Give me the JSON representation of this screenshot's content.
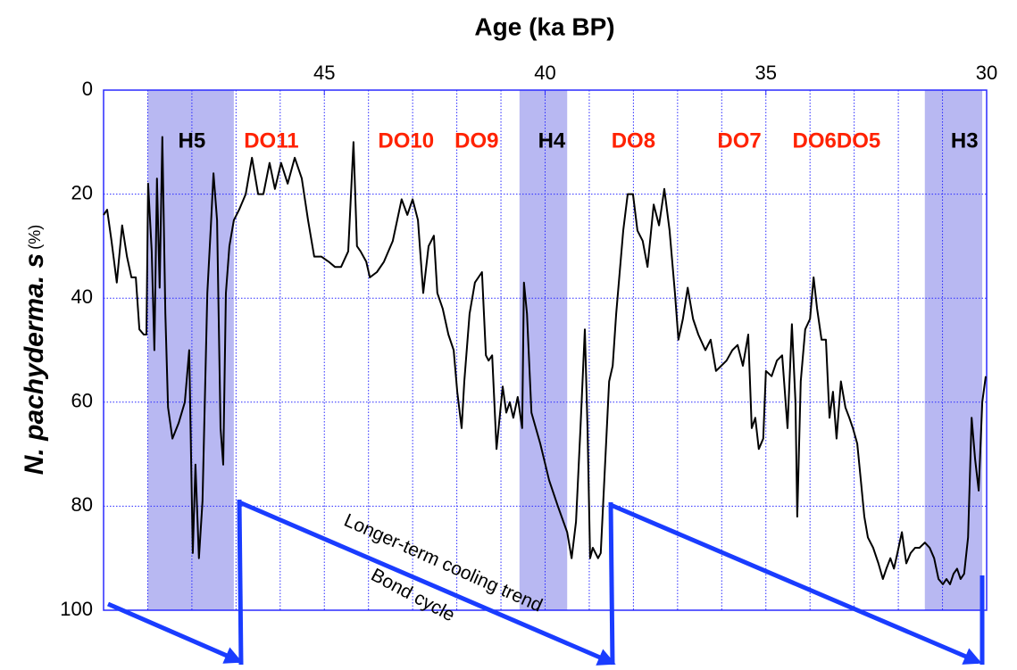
{
  "chart_data": {
    "type": "line",
    "title": "Age (ka BP)",
    "ylabel": "N. pachyderma. s",
    "ylabel_unit": "(%)",
    "xlim": [
      50,
      30
    ],
    "ylim": [
      100,
      0
    ],
    "xticks": [
      45,
      40,
      35,
      30
    ],
    "yticks": [
      0,
      20,
      40,
      60,
      80,
      100
    ],
    "xgrid": [
      49,
      48,
      47,
      46,
      45,
      44,
      43,
      42,
      41,
      40,
      39,
      38,
      37,
      36,
      35,
      34,
      33,
      32,
      31
    ],
    "grid": true,
    "color": "#000000",
    "band_color": "#b8b8f2",
    "bands": [
      [
        49.0,
        47.05
      ],
      [
        40.58,
        39.5
      ],
      [
        31.4,
        30.1
      ]
    ],
    "annotations": [
      {
        "text": "H5",
        "x": 48.0,
        "y": 10,
        "color": "#000000"
      },
      {
        "text": "DO11",
        "x": 46.2,
        "y": 10,
        "color": "#ff2200"
      },
      {
        "text": "DO10",
        "x": 43.15,
        "y": 10,
        "color": "#ff2200"
      },
      {
        "text": "DO9",
        "x": 41.55,
        "y": 10,
        "color": "#ff2200"
      },
      {
        "text": "H4",
        "x": 39.85,
        "y": 10,
        "color": "#000000"
      },
      {
        "text": "DO8",
        "x": 38.0,
        "y": 10,
        "color": "#ff2200"
      },
      {
        "text": "DO7",
        "x": 35.6,
        "y": 10,
        "color": "#ff2200"
      },
      {
        "text": "DO6DO5",
        "x": 33.4,
        "y": 10,
        "color": "#ff2200"
      },
      {
        "text": "H3",
        "x": 30.5,
        "y": 10,
        "color": "#000000"
      }
    ],
    "trend_label": "Longer-term cooling trend",
    "cycle_label": "Bond cycle",
    "x": [
      50.0,
      49.92,
      49.82,
      49.7,
      49.58,
      49.47,
      49.37,
      49.27,
      49.19,
      49.09,
      49.03,
      48.99,
      48.91,
      48.85,
      48.79,
      48.73,
      48.67,
      48.6,
      48.54,
      48.44,
      48.3,
      48.16,
      48.06,
      47.98,
      47.92,
      47.84,
      47.76,
      47.65,
      47.57,
      47.51,
      47.43,
      47.35,
      47.29,
      47.23,
      47.15,
      47.05,
      46.93,
      46.78,
      46.64,
      46.5,
      46.38,
      46.24,
      46.12,
      45.98,
      45.83,
      45.67,
      45.51,
      45.37,
      45.23,
      45.07,
      44.9,
      44.76,
      44.62,
      44.46,
      44.34,
      44.26,
      44.18,
      44.05,
      43.97,
      43.81,
      43.65,
      43.45,
      43.25,
      43.12,
      43.0,
      42.88,
      42.76,
      42.64,
      42.52,
      42.44,
      42.32,
      42.19,
      42.07,
      41.99,
      41.89,
      41.83,
      41.71,
      41.59,
      41.43,
      41.34,
      41.28,
      41.2,
      41.1,
      40.96,
      40.88,
      40.8,
      40.72,
      40.62,
      40.52,
      40.48,
      40.41,
      40.31,
      40.11,
      39.91,
      39.71,
      39.5,
      39.4,
      39.3,
      39.2,
      39.1,
      39.04,
      38.98,
      38.92,
      38.8,
      38.74,
      38.66,
      38.55,
      38.47,
      38.39,
      38.23,
      38.13,
      38.01,
      37.91,
      37.79,
      37.68,
      37.54,
      37.42,
      37.3,
      37.18,
      37.06,
      36.98,
      36.88,
      36.77,
      36.65,
      36.53,
      36.37,
      36.25,
      36.13,
      36.01,
      35.89,
      35.76,
      35.64,
      35.52,
      35.4,
      35.32,
      35.24,
      35.16,
      35.06,
      35.0,
      34.87,
      34.75,
      34.63,
      34.51,
      34.41,
      34.33,
      34.29,
      34.21,
      34.11,
      34.0,
      33.92,
      33.84,
      33.74,
      33.64,
      33.56,
      33.48,
      33.4,
      33.3,
      33.2,
      33.11,
      33.03,
      32.93,
      32.85,
      32.77,
      32.69,
      32.57,
      32.45,
      32.35,
      32.27,
      32.18,
      32.1,
      32.02,
      31.92,
      31.82,
      31.72,
      31.62,
      31.52,
      31.4,
      31.29,
      31.19,
      31.09,
      30.99,
      30.91,
      30.83,
      30.75,
      30.67,
      30.59,
      30.51,
      30.42,
      30.34,
      30.26,
      30.18,
      30.1,
      30.02
    ],
    "values": [
      24,
      23,
      29,
      37,
      26,
      32,
      36,
      36,
      46,
      47,
      47,
      18,
      31,
      50,
      17,
      38,
      9,
      43,
      61,
      67,
      64,
      60,
      50,
      89,
      72,
      90,
      79,
      39,
      26,
      16,
      25,
      65,
      72,
      39,
      30,
      25,
      23,
      20,
      13,
      20,
      20,
      14,
      19,
      14,
      18,
      13,
      17,
      25,
      32,
      32,
      33,
      34,
      34,
      31,
      10,
      30,
      31,
      33,
      36,
      35,
      33,
      29,
      21,
      24,
      21,
      25,
      39,
      30,
      28,
      39,
      42,
      47,
      50,
      58,
      65,
      56,
      43,
      37,
      35,
      51,
      52,
      51,
      69,
      57,
      62,
      60,
      63,
      59,
      65,
      37,
      43,
      62,
      68,
      75,
      80,
      85,
      90,
      83,
      65,
      46,
      65,
      90,
      88,
      90,
      89,
      75,
      56,
      53,
      43,
      27,
      20,
      20,
      27,
      29,
      34,
      22,
      26,
      19,
      27,
      39,
      48,
      44,
      38,
      44,
      47,
      50,
      48,
      54,
      53,
      52,
      50,
      49,
      53,
      47,
      65,
      63,
      69,
      67,
      54,
      55,
      52,
      51,
      65,
      45,
      60,
      82,
      56,
      46,
      44,
      36,
      42,
      48,
      48,
      63,
      58,
      67,
      56,
      61,
      63,
      65,
      68,
      75,
      82,
      86,
      88,
      91,
      94,
      92,
      90,
      92,
      89,
      85,
      91,
      89,
      88,
      88,
      87,
      88,
      90,
      94,
      95,
      94,
      95,
      93,
      92,
      94,
      93,
      86,
      63,
      71,
      77,
      60,
      55
    ]
  }
}
